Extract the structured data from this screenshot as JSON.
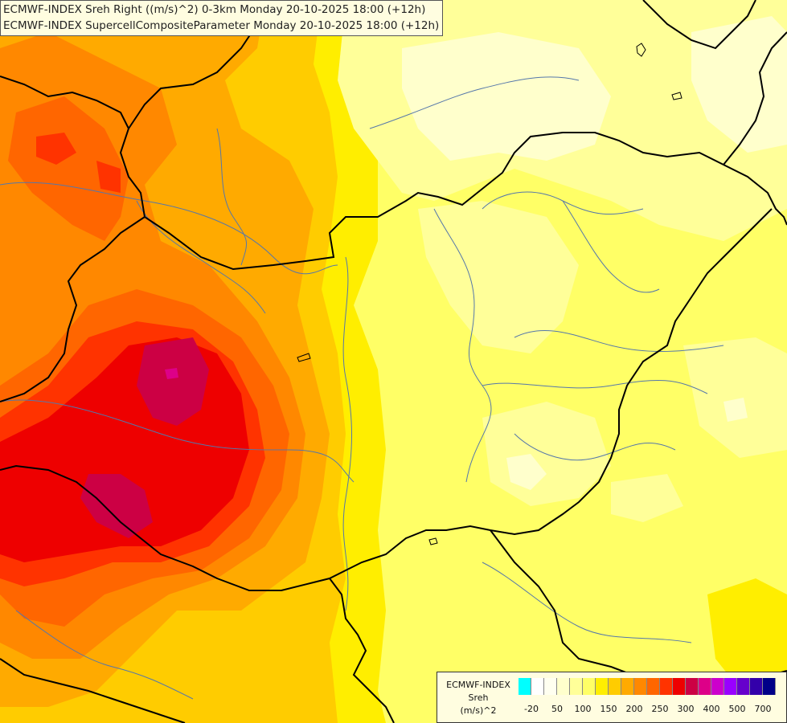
{
  "title": {
    "line1": "ECMWF-INDEX Sreh Right ((m/s)^2) 0-3km Monday 20-10-2025 18:00 (+12h)",
    "line2": "ECMWF-INDEX SupercellCompositeParameter Monday 20-10-2025 18:00 (+12h)"
  },
  "legend": {
    "line1": "ECMWF-INDEX",
    "line2": "Sreh",
    "line3": "(m/s)^2",
    "swatch_colors": [
      "#00ffff",
      "#ffffff",
      "#fffff0",
      "#ffffcc",
      "#ffff99",
      "#ffff66",
      "#ffee00",
      "#ffcc00",
      "#ffaa00",
      "#ff8800",
      "#ff6600",
      "#ff3300",
      "#ee0000",
      "#cc0044",
      "#dd0088",
      "#cc00cc",
      "#9900ff",
      "#6600cc",
      "#3300aa",
      "#000088"
    ],
    "tick_labels": [
      "-20",
      "50",
      "100",
      "150",
      "200",
      "250",
      "300",
      "400",
      "500",
      "700"
    ]
  },
  "map_colors": {
    "light": "#ffffcc",
    "pale": "#ffff99",
    "yellow": "#ffff66",
    "gold": "#ffee00",
    "amber": "#ffcc00",
    "orange": "#ffaa00",
    "dark_orange": "#ff8800",
    "orange_red": "#ff6600",
    "red": "#ff3300",
    "crimson": "#ee0000",
    "magenta": "#cc0044",
    "borders": "#000000",
    "rivers": "#5577aa"
  }
}
